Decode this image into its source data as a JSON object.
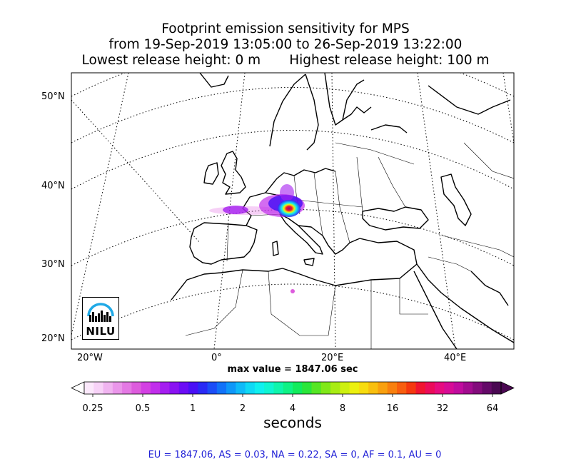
{
  "title": {
    "line1": "Footprint emission sensitivity for MPS",
    "line2": "from 19-Sep-2019 13:05:00 to 26-Sep-2019 13:22:00",
    "line3_left": "Lowest release height: 0 m",
    "line3_right": "Highest release height: 100 m"
  },
  "map": {
    "lat_labels": [
      "50°N",
      "40°N",
      "30°N",
      "20°N"
    ],
    "lon_labels": [
      "20°W",
      "0°",
      "20°E",
      "40°E"
    ]
  },
  "max_value": "max value = 1847.06 sec",
  "colorbar": {
    "ticks": [
      "0.25",
      "0.5",
      "1",
      "2",
      "4",
      "8",
      "16",
      "32",
      "64"
    ],
    "label": "seconds",
    "colors": [
      "#fbe8fb",
      "#f7d2f7",
      "#f0b4f0",
      "#ea96ea",
      "#e479e4",
      "#dd5cdd",
      "#d340e3",
      "#c12eeb",
      "#a51ef0",
      "#8a12f2",
      "#6b0cf5",
      "#4a10f5",
      "#2a2af5",
      "#1c4df7",
      "#1272f8",
      "#0f97f8",
      "#0fbaf8",
      "#0fd9f5",
      "#0ff0ef",
      "#0ff5d2",
      "#0ff5ac",
      "#0ff285",
      "#12eb5c",
      "#2ae63a",
      "#55e624",
      "#80e819",
      "#a8ec14",
      "#cdf010",
      "#ecf00f",
      "#f7dc0f",
      "#f8bf0f",
      "#f8a00f",
      "#f8800f",
      "#f85e0f",
      "#f5380f",
      "#f01430",
      "#eb0b5a",
      "#e60c80",
      "#d70c96",
      "#c00c9e",
      "#a20c8f",
      "#830c7c",
      "#640a68",
      "#4a0852"
    ]
  },
  "summary": "EU = 1847.06,  AS = 0.03,  NA = 0.22,  SA = 0,  AF = 0.1,  AU = 0",
  "logo": {
    "text": "NILU"
  }
}
